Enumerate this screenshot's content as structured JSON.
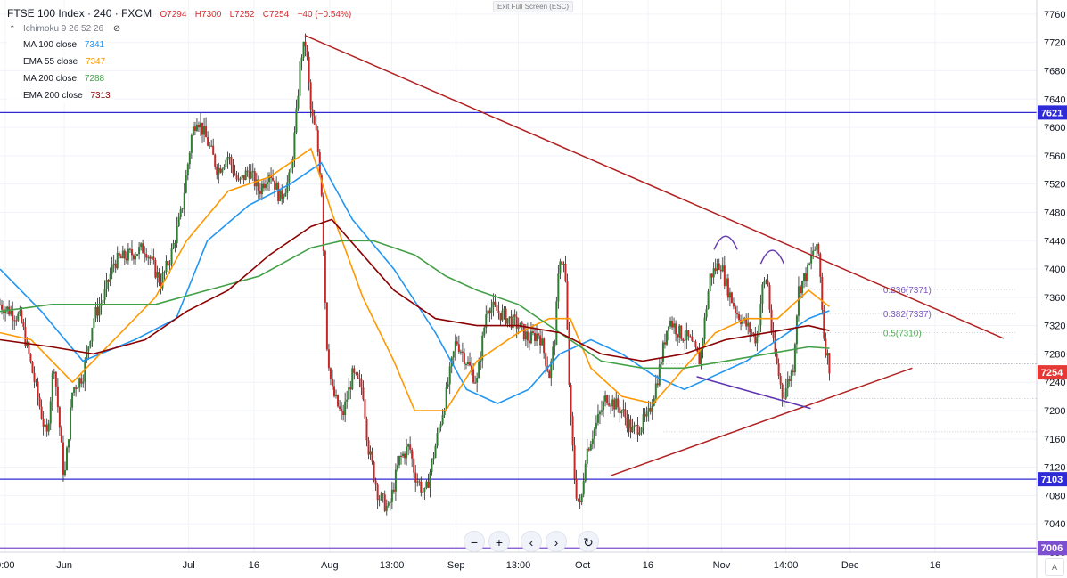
{
  "header": {
    "title": "FTSE 100 Index · 240 · FXCM",
    "open": "O7294",
    "high": "H7300",
    "low": "L7252",
    "close": "C7254",
    "change": "−40 (−0.54%)"
  },
  "indicators": [
    {
      "name": "Ichimoku 9 26 52 26",
      "value": "",
      "color": "#787b86",
      "icon": "eye-off-icon"
    },
    {
      "name": "MA 100 close",
      "value": "7341",
      "color": "#2196f3"
    },
    {
      "name": "EMA 55 close",
      "value": "7347",
      "color": "#ff9800"
    },
    {
      "name": "MA 200 close",
      "value": "7288",
      "color": "#43a047"
    },
    {
      "name": "EMA 200 close",
      "value": "7313",
      "color": "#8b0000"
    }
  ],
  "exit_fullscreen_label": "Exit Full Screen (ESC)",
  "nav_buttons": [
    {
      "name": "zoom-out-button",
      "label": "−"
    },
    {
      "name": "zoom-in-button",
      "label": "+"
    },
    {
      "name": "scroll-left-button",
      "label": "‹"
    },
    {
      "name": "scroll-right-button",
      "label": "›"
    },
    {
      "name": "reset-button",
      "label": "↻"
    }
  ],
  "auto_scale_label": "A",
  "chart_data": {
    "type": "candlestick",
    "ylim": [
      7000,
      7780
    ],
    "y_ticks": [
      7000,
      7040,
      7080,
      7120,
      7160,
      7200,
      7240,
      7280,
      7320,
      7360,
      7400,
      7440,
      7480,
      7520,
      7560,
      7600,
      7640,
      7680,
      7720,
      7760
    ],
    "x_tick_labels": [
      "0:00",
      "Jun",
      "Jul",
      "16",
      "Aug",
      "13:00",
      "Sep",
      "13:00",
      "Oct",
      "16",
      "Nov",
      "14:00",
      "Dec",
      "16"
    ],
    "price_labels": [
      {
        "value": 7621,
        "label": "7621",
        "color": "#2e2bd6"
      },
      {
        "value": 7254,
        "label": "7254",
        "color": "#e53935"
      },
      {
        "value": 7103,
        "label": "7103",
        "color": "#2e2bd6"
      },
      {
        "value": 7006,
        "label": "7006",
        "color": "#7b4fcf"
      }
    ],
    "horizontal_levels": [
      {
        "value": 7621,
        "color": "#2e2bd6"
      },
      {
        "value": 7103,
        "color": "#2e2bd6"
      },
      {
        "value": 7006,
        "color": "#7b4fcf"
      }
    ],
    "fibonacci": [
      {
        "label": "0.236(7371)",
        "value": 7371,
        "color": "#7e57c2"
      },
      {
        "label": "0.382(7337)",
        "value": 7337,
        "color": "#7e57c2"
      },
      {
        "label": "0.5(7310)",
        "value": 7310,
        "color": "#4caf50"
      }
    ],
    "fib_extra_levels": [
      7266,
      7217,
      7170
    ],
    "trendlines": [
      {
        "from": [
          0.294,
          7730
        ],
        "to": [
          0.968,
          7302
        ],
        "color": "#b22222"
      },
      {
        "from": [
          0.589,
          7108
        ],
        "to": [
          0.88,
          7260
        ],
        "color": "#b22222"
      },
      {
        "from": [
          0.672,
          7248
        ],
        "to": [
          0.782,
          7203
        ],
        "color": "#5e35b1"
      }
    ],
    "candles_path": [
      [
        0,
        7350
      ],
      [
        0.02,
        7330
      ],
      [
        0.035,
        7230
      ],
      [
        0.045,
        7160
      ],
      [
        0.052,
        7270
      ],
      [
        0.062,
        7100
      ],
      [
        0.07,
        7230
      ],
      [
        0.08,
        7250
      ],
      [
        0.09,
        7330
      ],
      [
        0.1,
        7360
      ],
      [
        0.11,
        7410
      ],
      [
        0.125,
        7420
      ],
      [
        0.14,
        7430
      ],
      [
        0.155,
        7380
      ],
      [
        0.165,
        7420
      ],
      [
        0.175,
        7480
      ],
      [
        0.185,
        7590
      ],
      [
        0.19,
        7615
      ],
      [
        0.2,
        7580
      ],
      [
        0.21,
        7540
      ],
      [
        0.22,
        7560
      ],
      [
        0.23,
        7520
      ],
      [
        0.24,
        7540
      ],
      [
        0.25,
        7510
      ],
      [
        0.26,
        7540
      ],
      [
        0.27,
        7500
      ],
      [
        0.28,
        7530
      ],
      [
        0.285,
        7600
      ],
      [
        0.29,
        7700
      ],
      [
        0.295,
        7720
      ],
      [
        0.3,
        7620
      ],
      [
        0.305,
        7590
      ],
      [
        0.31,
        7520
      ],
      [
        0.315,
        7300
      ],
      [
        0.32,
        7230
      ],
      [
        0.33,
        7190
      ],
      [
        0.34,
        7250
      ],
      [
        0.35,
        7230
      ],
      [
        0.355,
        7150
      ],
      [
        0.365,
        7080
      ],
      [
        0.375,
        7060
      ],
      [
        0.385,
        7130
      ],
      [
        0.395,
        7150
      ],
      [
        0.4,
        7110
      ],
      [
        0.41,
        7080
      ],
      [
        0.42,
        7150
      ],
      [
        0.43,
        7220
      ],
      [
        0.44,
        7300
      ],
      [
        0.45,
        7270
      ],
      [
        0.46,
        7240
      ],
      [
        0.47,
        7350
      ],
      [
        0.48,
        7340
      ],
      [
        0.49,
        7330
      ],
      [
        0.5,
        7320
      ],
      [
        0.51,
        7300
      ],
      [
        0.52,
        7310
      ],
      [
        0.53,
        7250
      ],
      [
        0.535,
        7300
      ],
      [
        0.54,
        7420
      ],
      [
        0.545,
        7400
      ],
      [
        0.55,
        7200
      ],
      [
        0.555,
        7090
      ],
      [
        0.56,
        7060
      ],
      [
        0.565,
        7140
      ],
      [
        0.575,
        7180
      ],
      [
        0.585,
        7220
      ],
      [
        0.6,
        7200
      ],
      [
        0.61,
        7170
      ],
      [
        0.625,
        7190
      ],
      [
        0.635,
        7250
      ],
      [
        0.645,
        7330
      ],
      [
        0.655,
        7310
      ],
      [
        0.665,
        7300
      ],
      [
        0.675,
        7270
      ],
      [
        0.685,
        7390
      ],
      [
        0.695,
        7410
      ],
      [
        0.7,
        7380
      ],
      [
        0.71,
        7340
      ],
      [
        0.72,
        7320
      ],
      [
        0.73,
        7300
      ],
      [
        0.735,
        7370
      ],
      [
        0.74,
        7390
      ],
      [
        0.745,
        7300
      ],
      [
        0.755,
        7220
      ],
      [
        0.765,
        7260
      ],
      [
        0.77,
        7370
      ],
      [
        0.78,
        7400
      ],
      [
        0.785,
        7430
      ],
      [
        0.79,
        7420
      ],
      [
        0.795,
        7300
      ],
      [
        0.8,
        7262
      ]
    ],
    "moving_averages": [
      {
        "name": "MA 100 close",
        "color": "#2196f3",
        "points": [
          [
            0,
            7400
          ],
          [
            0.04,
            7340
          ],
          [
            0.08,
            7270
          ],
          [
            0.13,
            7300
          ],
          [
            0.17,
            7330
          ],
          [
            0.2,
            7440
          ],
          [
            0.24,
            7490
          ],
          [
            0.28,
            7520
          ],
          [
            0.31,
            7550
          ],
          [
            0.34,
            7470
          ],
          [
            0.38,
            7400
          ],
          [
            0.42,
            7310
          ],
          [
            0.45,
            7230
          ],
          [
            0.48,
            7210
          ],
          [
            0.51,
            7230
          ],
          [
            0.54,
            7280
          ],
          [
            0.57,
            7300
          ],
          [
            0.6,
            7280
          ],
          [
            0.63,
            7250
          ],
          [
            0.66,
            7230
          ],
          [
            0.69,
            7250
          ],
          [
            0.72,
            7270
          ],
          [
            0.75,
            7300
          ],
          [
            0.78,
            7330
          ],
          [
            0.8,
            7341
          ]
        ]
      },
      {
        "name": "EMA 55 close",
        "color": "#ff9800",
        "points": [
          [
            0,
            7310
          ],
          [
            0.03,
            7300
          ],
          [
            0.07,
            7240
          ],
          [
            0.11,
            7300
          ],
          [
            0.15,
            7360
          ],
          [
            0.18,
            7440
          ],
          [
            0.22,
            7510
          ],
          [
            0.26,
            7530
          ],
          [
            0.3,
            7570
          ],
          [
            0.32,
            7480
          ],
          [
            0.35,
            7360
          ],
          [
            0.38,
            7270
          ],
          [
            0.4,
            7200
          ],
          [
            0.43,
            7200
          ],
          [
            0.46,
            7270
          ],
          [
            0.5,
            7310
          ],
          [
            0.53,
            7330
          ],
          [
            0.55,
            7330
          ],
          [
            0.57,
            7260
          ],
          [
            0.6,
            7220
          ],
          [
            0.63,
            7210
          ],
          [
            0.66,
            7260
          ],
          [
            0.69,
            7310
          ],
          [
            0.72,
            7330
          ],
          [
            0.75,
            7330
          ],
          [
            0.78,
            7370
          ],
          [
            0.8,
            7347
          ]
        ]
      },
      {
        "name": "MA 200 close",
        "color": "#43a047",
        "points": [
          [
            0,
            7340
          ],
          [
            0.05,
            7350
          ],
          [
            0.1,
            7350
          ],
          [
            0.15,
            7350
          ],
          [
            0.2,
            7370
          ],
          [
            0.25,
            7390
          ],
          [
            0.3,
            7430
          ],
          [
            0.33,
            7440
          ],
          [
            0.36,
            7440
          ],
          [
            0.4,
            7420
          ],
          [
            0.43,
            7390
          ],
          [
            0.46,
            7370
          ],
          [
            0.5,
            7350
          ],
          [
            0.54,
            7310
          ],
          [
            0.58,
            7270
          ],
          [
            0.62,
            7260
          ],
          [
            0.66,
            7260
          ],
          [
            0.7,
            7270
          ],
          [
            0.74,
            7280
          ],
          [
            0.78,
            7290
          ],
          [
            0.8,
            7288
          ]
        ]
      },
      {
        "name": "EMA 200 close",
        "color": "#8b0000",
        "points": [
          [
            0,
            7300
          ],
          [
            0.05,
            7290
          ],
          [
            0.09,
            7280
          ],
          [
            0.14,
            7300
          ],
          [
            0.18,
            7340
          ],
          [
            0.22,
            7370
          ],
          [
            0.26,
            7420
          ],
          [
            0.3,
            7460
          ],
          [
            0.32,
            7470
          ],
          [
            0.35,
            7420
          ],
          [
            0.38,
            7370
          ],
          [
            0.42,
            7330
          ],
          [
            0.46,
            7320
          ],
          [
            0.5,
            7320
          ],
          [
            0.54,
            7310
          ],
          [
            0.58,
            7280
          ],
          [
            0.62,
            7270
          ],
          [
            0.66,
            7280
          ],
          [
            0.7,
            7300
          ],
          [
            0.74,
            7310
          ],
          [
            0.78,
            7320
          ],
          [
            0.8,
            7313
          ]
        ]
      }
    ],
    "shoulder_arcs": [
      {
        "center_x": 0.7,
        "value": 7445
      },
      {
        "center_x": 0.745,
        "value": 7425
      }
    ],
    "current_price_line": 7266,
    "grid": true
  }
}
